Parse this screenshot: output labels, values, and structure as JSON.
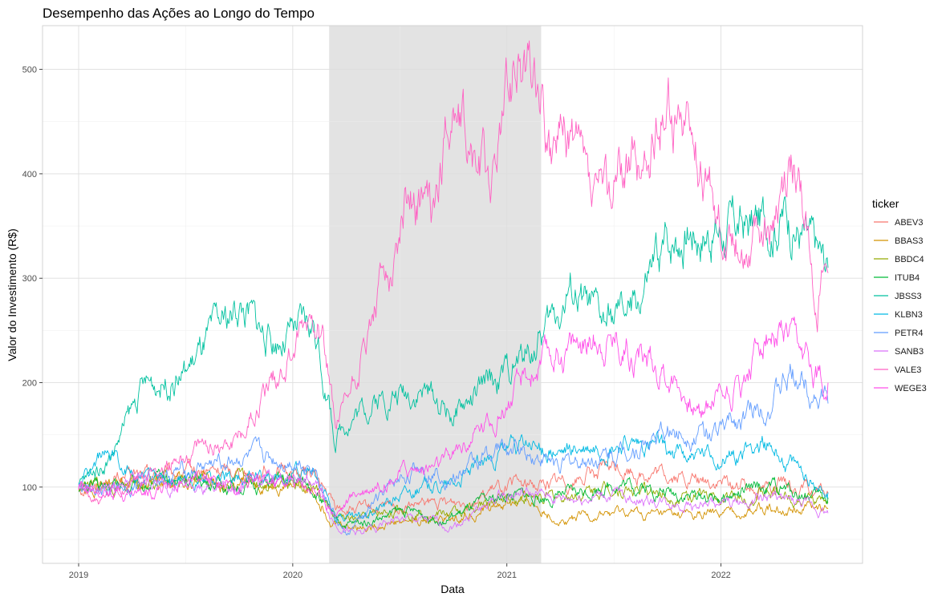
{
  "chart_data": {
    "type": "line",
    "title": "Desempenho das Ações ao Longo do Tempo",
    "xlabel": "Data",
    "ylabel": "Valor do Investimento (R$)",
    "xlim": [
      2019.0,
      2022.5
    ],
    "ylim": [
      50,
      525
    ],
    "x_ticks": [
      2019,
      2020,
      2021,
      2022
    ],
    "x_tick_labels": [
      "2019",
      "2020",
      "2021",
      "2022"
    ],
    "y_ticks": [
      100,
      200,
      300,
      400,
      500
    ],
    "y_tick_labels": [
      "100",
      "200",
      "300",
      "400",
      "500"
    ],
    "grid": true,
    "legend_position": "right",
    "legend_title": "ticker",
    "highlight_period": {
      "start": 2020.17,
      "end": 2021.16,
      "color": "#e3e3e3"
    },
    "series": [
      {
        "name": "ABEV3",
        "color": "#F8766D",
        "x": [
          2019.0,
          2019.25,
          2019.5,
          2019.75,
          2020.0,
          2020.1,
          2020.2,
          2020.3,
          2020.5,
          2020.75,
          2021.0,
          2021.25,
          2021.5,
          2021.75,
          2022.0,
          2022.25,
          2022.5
        ],
        "y": [
          100,
          110,
          112,
          116,
          115,
          112,
          80,
          78,
          80,
          85,
          100,
          105,
          118,
          110,
          103,
          101,
          94
        ]
      },
      {
        "name": "BBAS3",
        "color": "#D39200",
        "x": [
          2019.0,
          2019.25,
          2019.5,
          2019.75,
          2020.0,
          2020.1,
          2020.2,
          2020.3,
          2020.5,
          2020.75,
          2021.0,
          2021.1,
          2021.25,
          2021.5,
          2021.75,
          2022.0,
          2022.25,
          2022.5
        ],
        "y": [
          100,
          103,
          108,
          100,
          104,
          96,
          65,
          62,
          68,
          70,
          84,
          87,
          68,
          75,
          72,
          74,
          80,
          80
        ]
      },
      {
        "name": "BBDC4",
        "color": "#93AA00",
        "x": [
          2019.0,
          2019.25,
          2019.5,
          2019.75,
          2020.0,
          2020.1,
          2020.2,
          2020.3,
          2020.5,
          2020.75,
          2021.0,
          2021.25,
          2021.5,
          2021.75,
          2022.0,
          2022.25,
          2022.5
        ],
        "y": [
          100,
          104,
          108,
          102,
          110,
          100,
          70,
          68,
          78,
          74,
          90,
          90,
          100,
          93,
          88,
          94,
          85
        ]
      },
      {
        "name": "ITUB4",
        "color": "#00BA38",
        "x": [
          2019.0,
          2019.25,
          2019.5,
          2019.75,
          2020.0,
          2020.1,
          2020.2,
          2020.3,
          2020.5,
          2020.75,
          2021.0,
          2021.25,
          2021.5,
          2021.75,
          2022.0,
          2022.25,
          2022.5
        ],
        "y": [
          100,
          102,
          108,
          100,
          106,
          99,
          66,
          64,
          76,
          72,
          92,
          90,
          105,
          95,
          90,
          100,
          90
        ]
      },
      {
        "name": "JBSS3",
        "color": "#00C19F",
        "x": [
          2019.0,
          2019.15,
          2019.3,
          2019.5,
          2019.75,
          2019.9,
          2020.0,
          2020.1,
          2020.15,
          2020.2,
          2020.25,
          2020.4,
          2020.6,
          2020.75,
          2020.9,
          2021.0,
          2021.15,
          2021.3,
          2021.45,
          2021.6,
          2021.75,
          2021.85,
          2022.0,
          2022.15,
          2022.3,
          2022.4,
          2022.5
        ],
        "y": [
          100,
          130,
          195,
          210,
          275,
          240,
          245,
          255,
          200,
          145,
          165,
          185,
          195,
          170,
          195,
          210,
          240,
          290,
          255,
          270,
          335,
          350,
          345,
          350,
          365,
          335,
          310
        ]
      },
      {
        "name": "KLBN3",
        "color": "#00B9E3",
        "x": [
          2019.0,
          2019.1,
          2019.25,
          2019.5,
          2019.75,
          2020.0,
          2020.1,
          2020.2,
          2020.3,
          2020.5,
          2020.75,
          2021.0,
          2021.1,
          2021.25,
          2021.5,
          2021.75,
          2022.0,
          2022.2,
          2022.3,
          2022.5
        ],
        "y": [
          100,
          130,
          115,
          105,
          108,
          115,
          112,
          75,
          70,
          95,
          105,
          135,
          140,
          130,
          140,
          135,
          125,
          145,
          125,
          95
        ]
      },
      {
        "name": "PETR4",
        "color": "#619CFF",
        "x": [
          2019.0,
          2019.25,
          2019.5,
          2019.75,
          2020.0,
          2020.1,
          2020.2,
          2020.25,
          2020.4,
          2020.6,
          2020.75,
          2021.0,
          2021.25,
          2021.5,
          2021.75,
          2022.0,
          2022.25,
          2022.35,
          2022.5
        ],
        "y": [
          100,
          102,
          115,
          128,
          125,
          122,
          70,
          52,
          90,
          120,
          110,
          140,
          120,
          130,
          150,
          155,
          185,
          210,
          180
        ]
      },
      {
        "name": "SANB3",
        "color": "#DB72FB",
        "x": [
          2019.0,
          2019.25,
          2019.5,
          2019.75,
          2020.0,
          2020.1,
          2020.2,
          2020.3,
          2020.5,
          2020.75,
          2021.0,
          2021.25,
          2021.5,
          2021.75,
          2022.0,
          2022.25,
          2022.5
        ],
        "y": [
          100,
          106,
          100,
          103,
          110,
          104,
          65,
          55,
          70,
          63,
          95,
          88,
          92,
          85,
          82,
          90,
          75
        ]
      },
      {
        "name": "VALE3",
        "color": "#FF61C3",
        "x": [
          2019.0,
          2019.1,
          2019.25,
          2019.5,
          2019.75,
          2019.9,
          2020.0,
          2020.12,
          2020.15,
          2020.2,
          2020.25,
          2020.35,
          2020.45,
          2020.55,
          2020.65,
          2020.75,
          2020.85,
          2020.95,
          2021.0,
          2021.05,
          2021.12,
          2021.16,
          2021.2,
          2021.3,
          2021.4,
          2021.55,
          2021.65,
          2021.75,
          2021.85,
          2022.0,
          2022.1,
          2022.25,
          2022.35,
          2022.45,
          2022.5
        ],
        "y": [
          100,
          85,
          105,
          130,
          150,
          200,
          230,
          275,
          240,
          155,
          180,
          240,
          310,
          395,
          360,
          470,
          420,
          405,
          480,
          515,
          500,
          480,
          410,
          440,
          370,
          410,
          410,
          475,
          440,
          350,
          340,
          350,
          410,
          280,
          305
        ]
      },
      {
        "name": "WEGE3",
        "color": "#FF4FE9",
        "x": [
          2019.0,
          2019.25,
          2019.5,
          2019.75,
          2020.0,
          2020.1,
          2020.2,
          2020.3,
          2020.5,
          2020.7,
          2020.8,
          2021.0,
          2021.15,
          2021.3,
          2021.5,
          2021.7,
          2021.8,
          2021.9,
          2022.0,
          2022.1,
          2022.2,
          2022.3,
          2022.4,
          2022.5
        ],
        "y": [
          100,
          95,
          105,
          102,
          105,
          100,
          75,
          95,
          115,
          120,
          140,
          180,
          215,
          235,
          245,
          215,
          200,
          170,
          195,
          200,
          245,
          240,
          215,
          200
        ]
      }
    ]
  }
}
